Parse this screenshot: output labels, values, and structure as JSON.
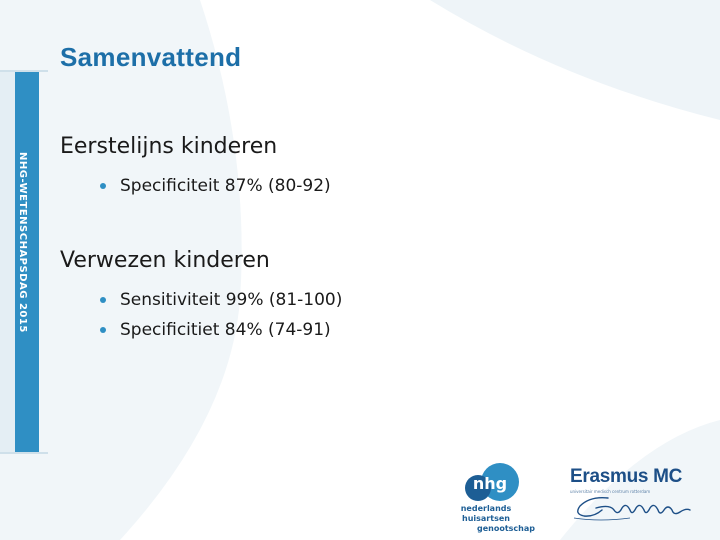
{
  "slide": {
    "title": "Samenvattend",
    "side_label": "NHG-WETENSCHAPSDAG 2015"
  },
  "sections": [
    {
      "heading": "Eerstelijns kinderen",
      "bullets": [
        "Specificiteit 87% (80-92)"
      ]
    },
    {
      "heading": "Verwezen kinderen",
      "bullets": [
        "Sensitiviteit 99% (81-100)",
        "Specificitiet 84% (74-91)"
      ]
    }
  ],
  "logos": {
    "nhg": {
      "mark_text": "nhg",
      "line1": "nederlands huisartsen",
      "line2": "genootschap"
    },
    "erasmus": {
      "name": "Erasmus MC",
      "subline": "universitair medisch centrum rotterdam",
      "icon": "erasmus-signature"
    }
  },
  "colors": {
    "accent": "#2f8fc4",
    "title": "#1d6fa8",
    "swoosh": "#eef4f8"
  }
}
